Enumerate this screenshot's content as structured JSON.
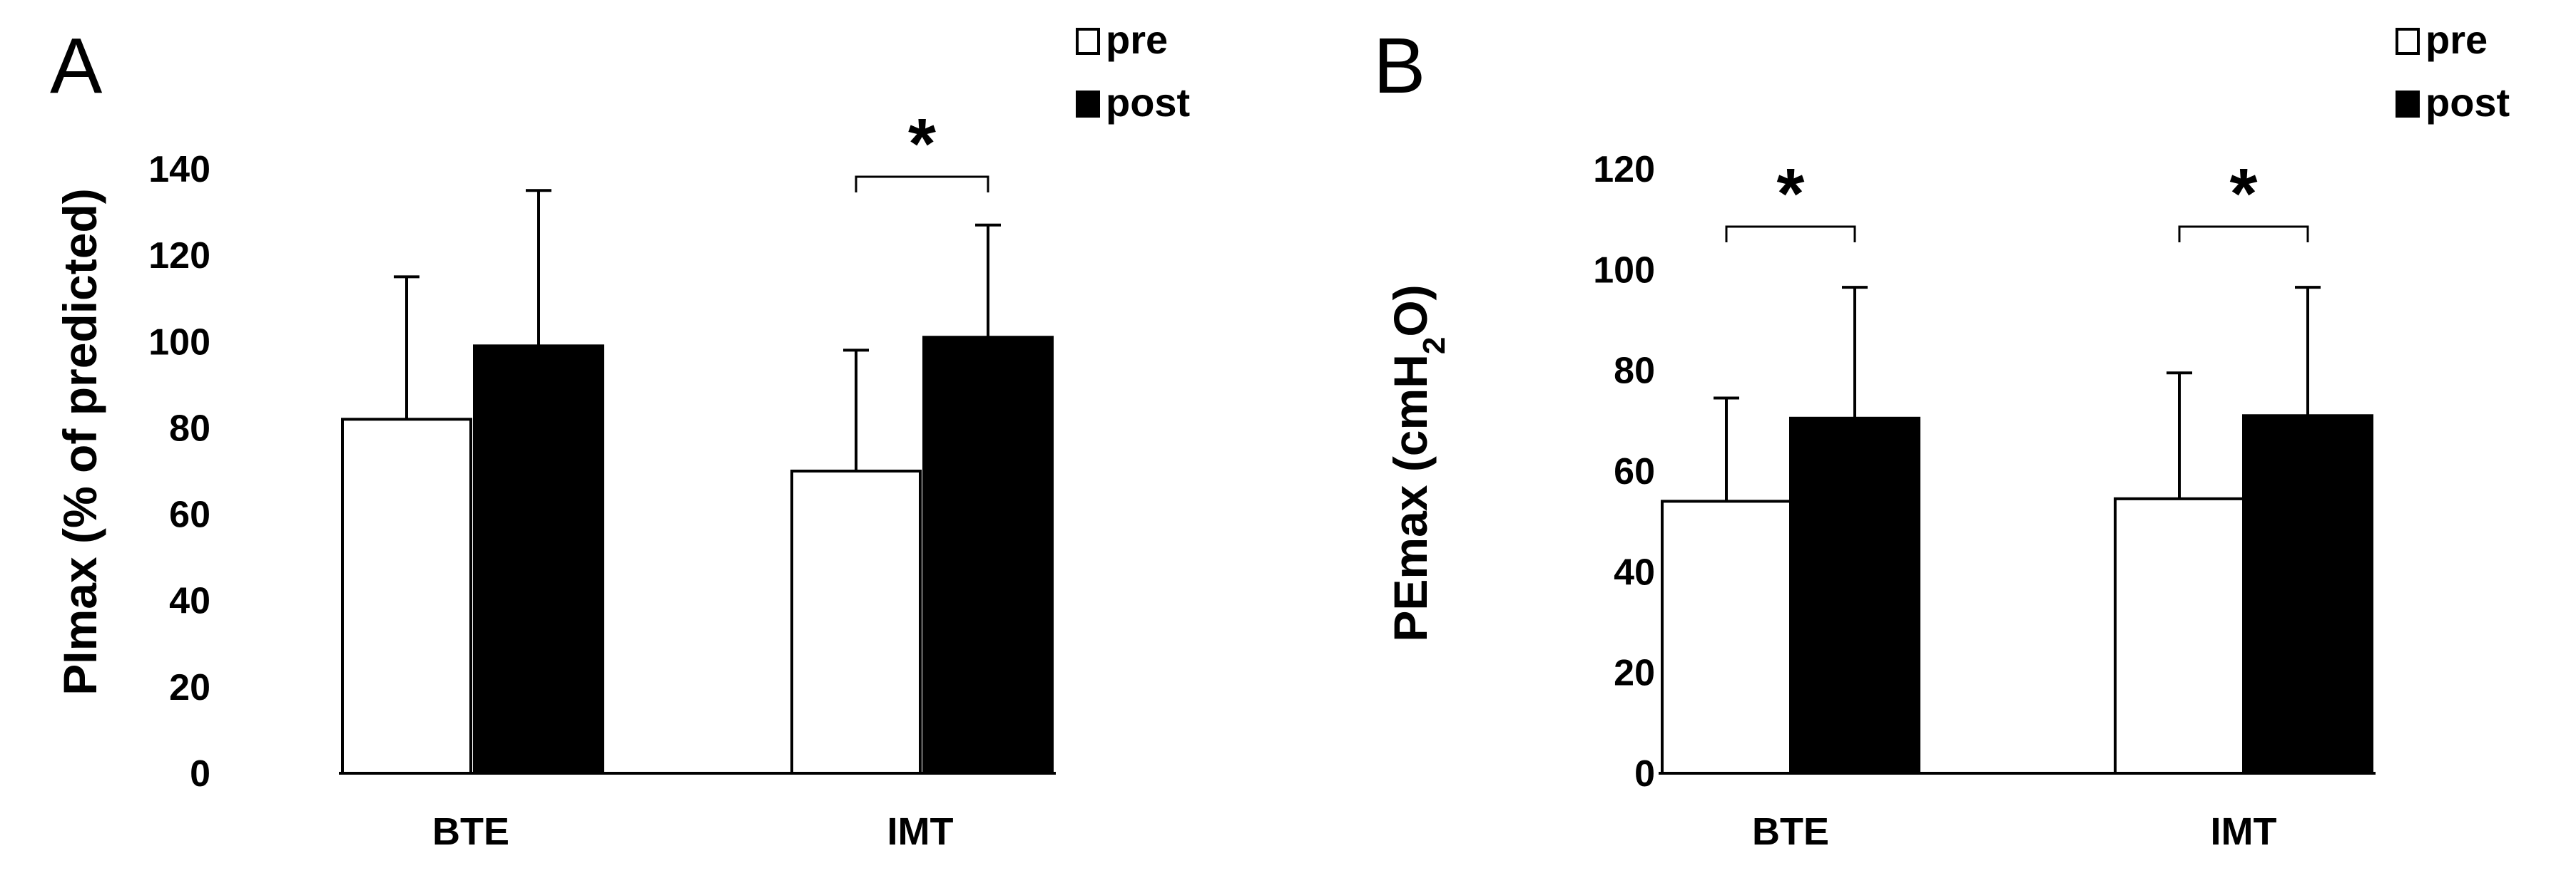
{
  "chart_data": [
    {
      "type": "bar",
      "panel": "A",
      "categories": [
        "BTE",
        "IMT"
      ],
      "series": [
        {
          "name": "pre",
          "values": [
            82,
            70
          ],
          "errors": [
            33,
            28
          ],
          "color": "#ffffff"
        },
        {
          "name": "post",
          "values": [
            99,
            101
          ],
          "errors": [
            36,
            26
          ],
          "color": "#000000"
        }
      ],
      "ylabel": "PImax (% of predicted)",
      "ylim": [
        0,
        140
      ],
      "yticks": [
        "0",
        "20",
        "40",
        "60",
        "80",
        "100",
        "120",
        "140"
      ],
      "legend": {
        "position": "top-right",
        "entries": [
          "pre",
          "post"
        ]
      },
      "significance": [
        {
          "category": "IMT",
          "label": "*"
        }
      ]
    },
    {
      "type": "bar",
      "panel": "B",
      "categories": [
        "BTE",
        "IMT"
      ],
      "series": [
        {
          "name": "pre",
          "values": [
            54,
            54.5
          ],
          "errors": [
            20.5,
            25
          ],
          "color": "#ffffff"
        },
        {
          "name": "post",
          "values": [
            70.5,
            71
          ],
          "errors": [
            26,
            25.5
          ],
          "color": "#000000"
        }
      ],
      "ylabel": "PEmax (cmH2O)",
      "ylabel_parts": [
        "PEmax (cmH",
        "2",
        "O)"
      ],
      "ylim": [
        0,
        120
      ],
      "yticks": [
        "0",
        "20",
        "40",
        "60",
        "80",
        "100",
        "120"
      ],
      "legend": {
        "position": "top-right",
        "entries": [
          "pre",
          "post"
        ]
      },
      "significance": [
        {
          "category": "BTE",
          "label": "*"
        },
        {
          "category": "IMT",
          "label": "*"
        }
      ]
    }
  ]
}
